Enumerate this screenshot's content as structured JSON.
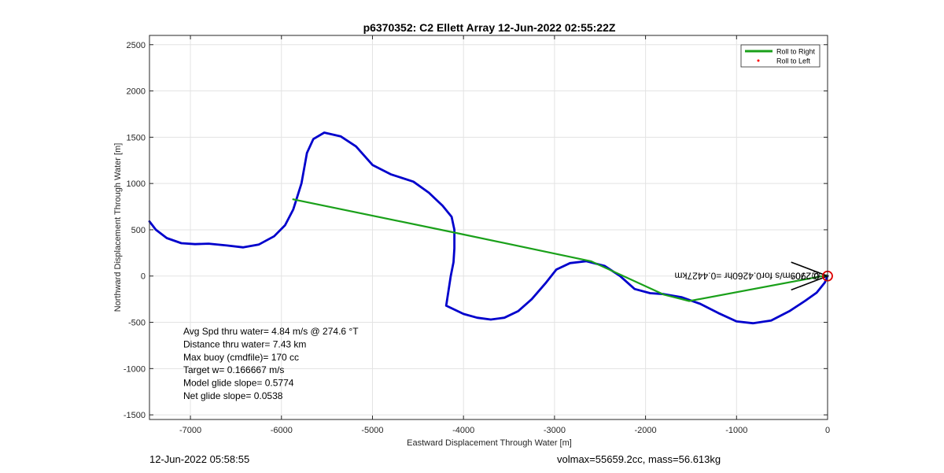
{
  "chart_data": {
    "type": "line",
    "title": "p6370352: C2 Ellett Array 12-Jun-2022 02:55:22Z",
    "xlabel": "Eastward Displacement Through Water [m]",
    "ylabel": "Northward Displacement Through Water [m]",
    "xlim": [
      -7450,
      0
    ],
    "ylim": [
      -1550,
      2600
    ],
    "xticks": [
      -7000,
      -6000,
      -5000,
      -4000,
      -3000,
      -2000,
      -1000,
      0
    ],
    "yticks": [
      -1500,
      -1000,
      -500,
      0,
      500,
      1000,
      1500,
      2000,
      2500
    ],
    "xtick_labels": [
      "-7000",
      "-6000",
      "-5000",
      "-4000",
      "-3000",
      "-2000",
      "-1000",
      "0"
    ],
    "ytick_labels": [
      "-1500",
      "-1000",
      "-500",
      "0",
      "500",
      "1000",
      "1500",
      "2000",
      "2500"
    ],
    "grid": true,
    "legend": {
      "placement": "top-right",
      "entries": [
        {
          "label": "Roll to Right",
          "color": "#1aa01a",
          "marker": "line"
        },
        {
          "label": "Roll to Left",
          "color": "#ff0000",
          "marker": "point"
        }
      ]
    },
    "series": [
      {
        "color": "#0000cc",
        "points": [
          [
            -7450,
            590
          ],
          [
            -7380,
            500
          ],
          [
            -7260,
            410
          ],
          [
            -7100,
            355
          ],
          [
            -6950,
            345
          ],
          [
            -6800,
            350
          ],
          [
            -6600,
            330
          ],
          [
            -6420,
            310
          ],
          [
            -6250,
            340
          ],
          [
            -6080,
            430
          ],
          [
            -5960,
            550
          ],
          [
            -5870,
            720
          ],
          [
            -5780,
            1000
          ],
          [
            -5720,
            1330
          ],
          [
            -5650,
            1480
          ],
          [
            -5530,
            1550
          ],
          [
            -5350,
            1510
          ],
          [
            -5180,
            1400
          ],
          [
            -5000,
            1200
          ],
          [
            -4800,
            1100
          ],
          [
            -4550,
            1020
          ],
          [
            -4380,
            900
          ],
          [
            -4230,
            760
          ],
          [
            -4130,
            640
          ],
          [
            -4100,
            500
          ],
          [
            -4100,
            300
          ],
          [
            -4110,
            150
          ],
          [
            -4140,
            0
          ],
          [
            -4190,
            -320
          ],
          [
            -4000,
            -410
          ],
          [
            -3850,
            -450
          ],
          [
            -3700,
            -470
          ],
          [
            -3550,
            -450
          ],
          [
            -3400,
            -380
          ],
          [
            -3250,
            -250
          ],
          [
            -3100,
            -80
          ],
          [
            -2980,
            70
          ],
          [
            -2830,
            140
          ],
          [
            -2650,
            160
          ],
          [
            -2450,
            110
          ],
          [
            -2280,
            0
          ],
          [
            -2120,
            -140
          ],
          [
            -1950,
            -185
          ],
          [
            -1800,
            -195
          ],
          [
            -1600,
            -230
          ],
          [
            -1400,
            -300
          ],
          [
            -1200,
            -400
          ],
          [
            -1000,
            -490
          ],
          [
            -820,
            -510
          ],
          [
            -620,
            -480
          ],
          [
            -420,
            -380
          ],
          [
            -250,
            -270
          ],
          [
            -120,
            -180
          ],
          [
            -30,
            -70
          ],
          [
            0,
            0
          ]
        ]
      },
      {
        "name": "Roll to Right",
        "color": "#1aa01a",
        "points": [
          [
            -5880,
            830
          ],
          [
            -4100,
            470
          ],
          [
            -2600,
            160
          ],
          [
            -1800,
            -200
          ],
          [
            -1520,
            -270
          ],
          [
            0,
            10
          ]
        ]
      }
    ],
    "current_vector": {
      "color": "#000000",
      "points": [
        [
          -400,
          150
        ],
        [
          0,
          0
        ],
        [
          -400,
          -150
        ]
      ]
    },
    "end_marker": {
      "x": 0,
      "y": 0,
      "color": "#dd0000"
    },
    "annotation_mirrored": {
      "text": "0.2909m/s for0.4260hr =0.4427km",
      "overlap_text": "@270°",
      "x": -300,
      "y": 0
    },
    "stats_lines": [
      "Avg Spd thru water=  4.84 m/s @ 274.6 °T",
      "Distance thru water=  7.43 km",
      "Max buoy (cmdfile)= 170 cc",
      "Target w= 0.166667 m/s",
      "Model glide slope= 0.5774",
      "Net glide slope= 0.0538"
    ]
  },
  "footer": {
    "date": "12-Jun-2022 05:58:55",
    "volmax": "volmax=55659.2cc, mass=56.613kg"
  }
}
